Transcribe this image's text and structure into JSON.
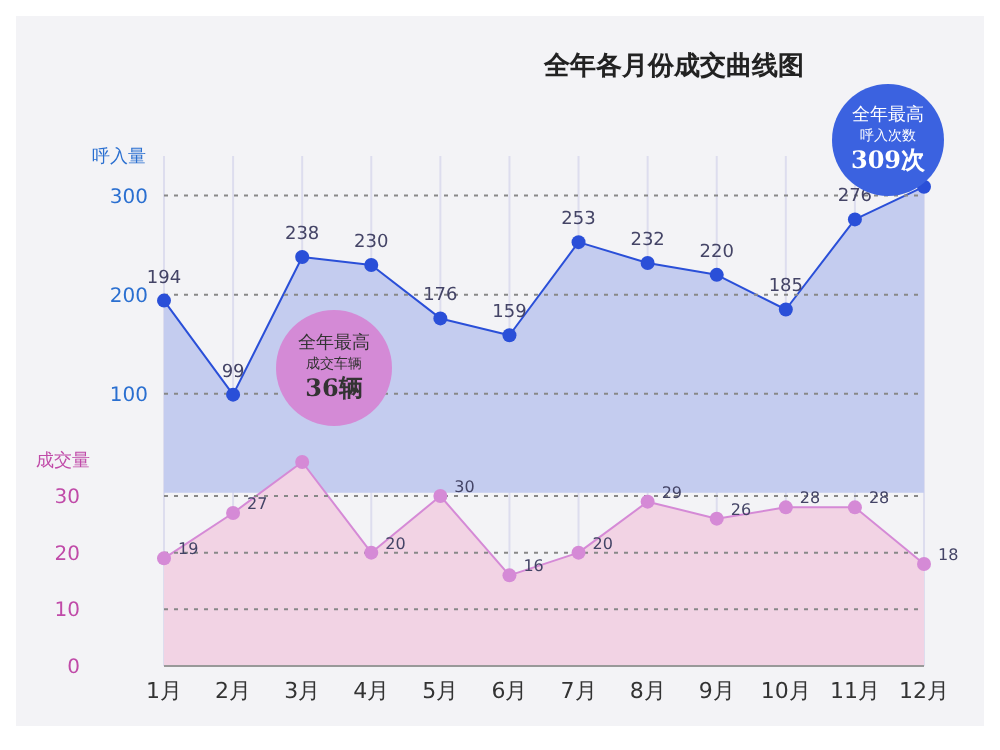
{
  "chart_data": {
    "type": "area",
    "title": "全年各月份成交曲线图",
    "ylabel": "呼入量",
    "y2label": "成交量",
    "categories": [
      "1月",
      "2月",
      "3月",
      "4月",
      "5月",
      "6月",
      "7月",
      "8月",
      "9月",
      "10月",
      "11月",
      "12月"
    ],
    "series": [
      {
        "color": "#2a4fd8",
        "values": [
          194,
          99,
          238,
          230,
          176,
          159,
          253,
          232,
          220,
          185,
          276,
          309
        ],
        "value_labels": [
          "194",
          "99",
          "238",
          "230",
          "176",
          "159",
          "253",
          "232",
          "220",
          "185",
          "276",
          null
        ]
      },
      {
        "axis": "y2",
        "color": "#d58ad6",
        "values": [
          19,
          27,
          36,
          20,
          30,
          16,
          20,
          29,
          26,
          28,
          28,
          18
        ],
        "value_labels": [
          "19",
          "27",
          null,
          "20",
          "30",
          "16",
          "20",
          "29",
          "26",
          "28",
          "28",
          "18"
        ]
      }
    ],
    "ylim": [
      -175,
      340
    ],
    "yticks": [
      100,
      200,
      300
    ],
    "y2lim": [
      0,
      90
    ],
    "y2ticks": [
      0,
      10,
      20,
      30
    ],
    "grid": true,
    "marker": "circle",
    "annotations": [
      "全年最高",
      "呼入次数",
      "309次",
      "全年最高",
      "成交车辆",
      "36辆"
    ]
  }
}
